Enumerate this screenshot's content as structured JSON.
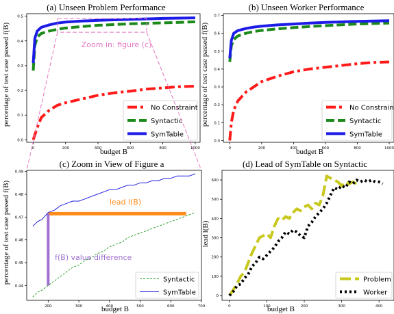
{
  "colors": {
    "no_constraint": "#ff1a1a",
    "syntactic": "#1b8a1b",
    "symtable": "#1c1ce6",
    "zoom": "#e377c2",
    "lead": "#ff8c1a",
    "fdiff": "#a070d0",
    "problem": "#c8c81e",
    "worker": "#000000",
    "syntactic_thin": "#2ca02c",
    "symtable_thin": "#2020e0"
  },
  "chart_data": [
    {
      "id": "a",
      "type": "line",
      "title": "(a) Unseen Problem Performance",
      "xlabel": "budget B",
      "ylabel": "percentage of test case passed f(B)",
      "xlim": [
        -40,
        1030
      ],
      "ylim": [
        -0.01,
        0.51
      ],
      "xticks": [
        "0",
        "200",
        "400",
        "600",
        "800",
        "1000"
      ],
      "xtick_values": [
        0,
        200,
        400,
        600,
        800,
        1000
      ],
      "yticks": [
        "0.0",
        "0.1",
        "0.2",
        "0.3",
        "0.4",
        "0.5"
      ],
      "ytick_values": [
        0,
        0.1,
        0.2,
        0.3,
        0.4,
        0.5
      ],
      "legend_position": "lower-right",
      "annotation": "Zoom in: figure (c)",
      "zoom_box": {
        "x0": 150,
        "x1": 700,
        "y0": 0.435,
        "y1": 0.49
      },
      "series": [
        {
          "name": "No Constraint",
          "key": "no_constraint",
          "dash": "dashdot",
          "x": [
            0,
            10,
            25,
            50,
            100,
            150,
            200,
            300,
            400,
            500,
            600,
            700,
            800,
            900,
            1000
          ],
          "y": [
            0.0,
            0.02,
            0.05,
            0.09,
            0.12,
            0.14,
            0.15,
            0.165,
            0.18,
            0.19,
            0.197,
            0.205,
            0.21,
            0.215,
            0.217
          ]
        },
        {
          "name": "Syntactic",
          "key": "syntactic",
          "dash": "dashed",
          "x": [
            0,
            10,
            25,
            50,
            100,
            150,
            200,
            300,
            400,
            500,
            600,
            700,
            800,
            900,
            1000
          ],
          "y": [
            0.28,
            0.38,
            0.415,
            0.43,
            0.44,
            0.447,
            0.452,
            0.458,
            0.463,
            0.466,
            0.469,
            0.471,
            0.473,
            0.475,
            0.477
          ]
        },
        {
          "name": "SymTable",
          "key": "symtable",
          "dash": "solid",
          "x": [
            0,
            10,
            25,
            50,
            100,
            150,
            200,
            300,
            400,
            500,
            600,
            700,
            800,
            900,
            1000
          ],
          "y": [
            0.31,
            0.41,
            0.44,
            0.455,
            0.465,
            0.472,
            0.476,
            0.48,
            0.483,
            0.485,
            0.487,
            0.489,
            0.491,
            0.492,
            0.493
          ]
        }
      ]
    },
    {
      "id": "b",
      "type": "line",
      "title": "(b) Unseen Worker Performance",
      "xlabel": "budget B",
      "ylabel": "percentage of test case passed f(B)",
      "xlim": [
        -40,
        1030
      ],
      "ylim": [
        -0.01,
        0.71
      ],
      "xticks": [
        "0",
        "200",
        "400",
        "600",
        "800",
        "1000"
      ],
      "xtick_values": [
        0,
        200,
        400,
        600,
        800,
        1000
      ],
      "yticks": [
        "0.0",
        "0.1",
        "0.2",
        "0.3",
        "0.4",
        "0.5",
        "0.6",
        "0.7"
      ],
      "ytick_values": [
        0,
        0.1,
        0.2,
        0.3,
        0.4,
        0.5,
        0.6,
        0.7
      ],
      "legend_position": "lower-right",
      "series": [
        {
          "name": "No Constraint",
          "key": "no_constraint",
          "dash": "dashdot",
          "x": [
            0,
            10,
            25,
            50,
            100,
            150,
            200,
            300,
            400,
            500,
            600,
            700,
            800,
            900,
            1000
          ],
          "y": [
            0.0,
            0.1,
            0.17,
            0.22,
            0.27,
            0.3,
            0.33,
            0.36,
            0.385,
            0.4,
            0.41,
            0.42,
            0.43,
            0.437,
            0.44
          ]
        },
        {
          "name": "Syntactic",
          "key": "syntactic",
          "dash": "dashed",
          "x": [
            0,
            10,
            25,
            50,
            100,
            150,
            200,
            300,
            400,
            500,
            600,
            700,
            800,
            900,
            1000
          ],
          "y": [
            0.44,
            0.53,
            0.565,
            0.585,
            0.6,
            0.61,
            0.616,
            0.625,
            0.632,
            0.638,
            0.643,
            0.648,
            0.652,
            0.655,
            0.657
          ]
        },
        {
          "name": "SymTable",
          "key": "symtable",
          "dash": "solid",
          "x": [
            0,
            10,
            25,
            50,
            100,
            150,
            200,
            300,
            400,
            500,
            600,
            700,
            800,
            900,
            1000
          ],
          "y": [
            0.46,
            0.56,
            0.6,
            0.615,
            0.627,
            0.635,
            0.64,
            0.647,
            0.652,
            0.657,
            0.661,
            0.664,
            0.667,
            0.669,
            0.671
          ]
        }
      ]
    },
    {
      "id": "c",
      "type": "line",
      "title": "(c) Zoom in View of Figure a",
      "xlabel": "budget B",
      "ylabel": "percentage of test case passed f(B)",
      "xlim": [
        130,
        700
      ],
      "ylim": [
        0.4335,
        0.4905
      ],
      "xticks": [
        "200",
        "300",
        "400",
        "500",
        "600",
        "700"
      ],
      "xtick_values": [
        200,
        300,
        400,
        500,
        600,
        700
      ],
      "yticks": [
        "0.44",
        "0.45",
        "0.46",
        "0.47",
        "0.48",
        "0.49"
      ],
      "ytick_values": [
        0.44,
        0.45,
        0.46,
        0.47,
        0.48,
        0.49
      ],
      "legend_position": "lower-right",
      "lead_label": "lead l(B)",
      "fdiff_label": "f(B) value difference",
      "lead_line": {
        "x0": 200,
        "x1": 650,
        "y": 0.4715
      },
      "fdiff_line": {
        "x": 200,
        "y0": 0.44,
        "y1": 0.4715
      },
      "series": [
        {
          "name": "Syntactic",
          "key": "syntactic_thin",
          "dash": "dashed",
          "x": [
            150,
            165,
            180,
            200,
            220,
            240,
            260,
            280,
            300,
            320,
            340,
            360,
            380,
            400,
            420,
            440,
            460,
            480,
            500,
            520,
            540,
            560,
            580,
            600,
            620,
            640,
            660,
            680
          ],
          "y": [
            0.435,
            0.437,
            0.438,
            0.44,
            0.442,
            0.444,
            0.446,
            0.448,
            0.449,
            0.451,
            0.452,
            0.454,
            0.455,
            0.457,
            0.458,
            0.459,
            0.461,
            0.462,
            0.463,
            0.464,
            0.465,
            0.466,
            0.467,
            0.468,
            0.469,
            0.47,
            0.471,
            0.472
          ]
        },
        {
          "name": "SymTable",
          "key": "symtable_thin",
          "dash": "solid",
          "x": [
            150,
            165,
            180,
            200,
            220,
            240,
            260,
            280,
            300,
            320,
            340,
            360,
            380,
            400,
            420,
            440,
            460,
            480,
            500,
            520,
            540,
            560,
            580,
            600,
            620,
            640,
            660,
            680
          ],
          "y": [
            0.466,
            0.468,
            0.469,
            0.472,
            0.473,
            0.475,
            0.476,
            0.477,
            0.477,
            0.478,
            0.479,
            0.48,
            0.481,
            0.482,
            0.482,
            0.483,
            0.484,
            0.484,
            0.485,
            0.485,
            0.486,
            0.486,
            0.487,
            0.487,
            0.488,
            0.488,
            0.488,
            0.489
          ]
        }
      ]
    },
    {
      "id": "d",
      "type": "line",
      "title": "(d) Lead of SymTable on Syntactic",
      "xlabel": "budget B",
      "ylabel": "lead l(B)",
      "xlim": [
        -20,
        440
      ],
      "ylim": [
        -25,
        650
      ],
      "xticks": [
        "0",
        "100",
        "200",
        "300",
        "400"
      ],
      "xtick_values": [
        0,
        100,
        200,
        300,
        400
      ],
      "yticks": [
        "0",
        "100",
        "200",
        "300",
        "400",
        "500",
        "600"
      ],
      "ytick_values": [
        0,
        100,
        200,
        300,
        400,
        500,
        600
      ],
      "legend_position": "lower-right",
      "series": [
        {
          "name": "Problem",
          "key": "problem",
          "dash": "longdash",
          "x": [
            0,
            10,
            20,
            30,
            40,
            50,
            60,
            70,
            80,
            90,
            100,
            110,
            120,
            130,
            140,
            150,
            160,
            170,
            180,
            190,
            200,
            210,
            220,
            230,
            240,
            250,
            260,
            270,
            280,
            290,
            300,
            310,
            320,
            330,
            340
          ],
          "y": [
            0,
            30,
            60,
            100,
            120,
            170,
            220,
            260,
            300,
            310,
            320,
            300,
            360,
            400,
            390,
            410,
            400,
            430,
            450,
            440,
            460,
            470,
            450,
            480,
            470,
            520,
            620,
            610,
            600,
            590,
            570,
            590,
            580,
            590,
            580
          ]
        },
        {
          "name": "Worker",
          "key": "worker",
          "dash": "dotted",
          "x": [
            0,
            10,
            20,
            30,
            40,
            50,
            60,
            70,
            80,
            90,
            100,
            110,
            120,
            130,
            140,
            150,
            160,
            170,
            180,
            190,
            200,
            210,
            220,
            230,
            240,
            250,
            260,
            270,
            280,
            290,
            300,
            310,
            320,
            330,
            340,
            350,
            360,
            370,
            380,
            390,
            400,
            410
          ],
          "y": [
            0,
            20,
            50,
            60,
            90,
            110,
            150,
            170,
            200,
            190,
            210,
            230,
            250,
            280,
            300,
            330,
            320,
            340,
            330,
            310,
            300,
            360,
            380,
            410,
            430,
            450,
            480,
            520,
            560,
            550,
            570,
            560,
            590,
            580,
            600,
            590,
            600,
            590,
            600,
            590,
            590,
            580
          ]
        }
      ]
    }
  ]
}
